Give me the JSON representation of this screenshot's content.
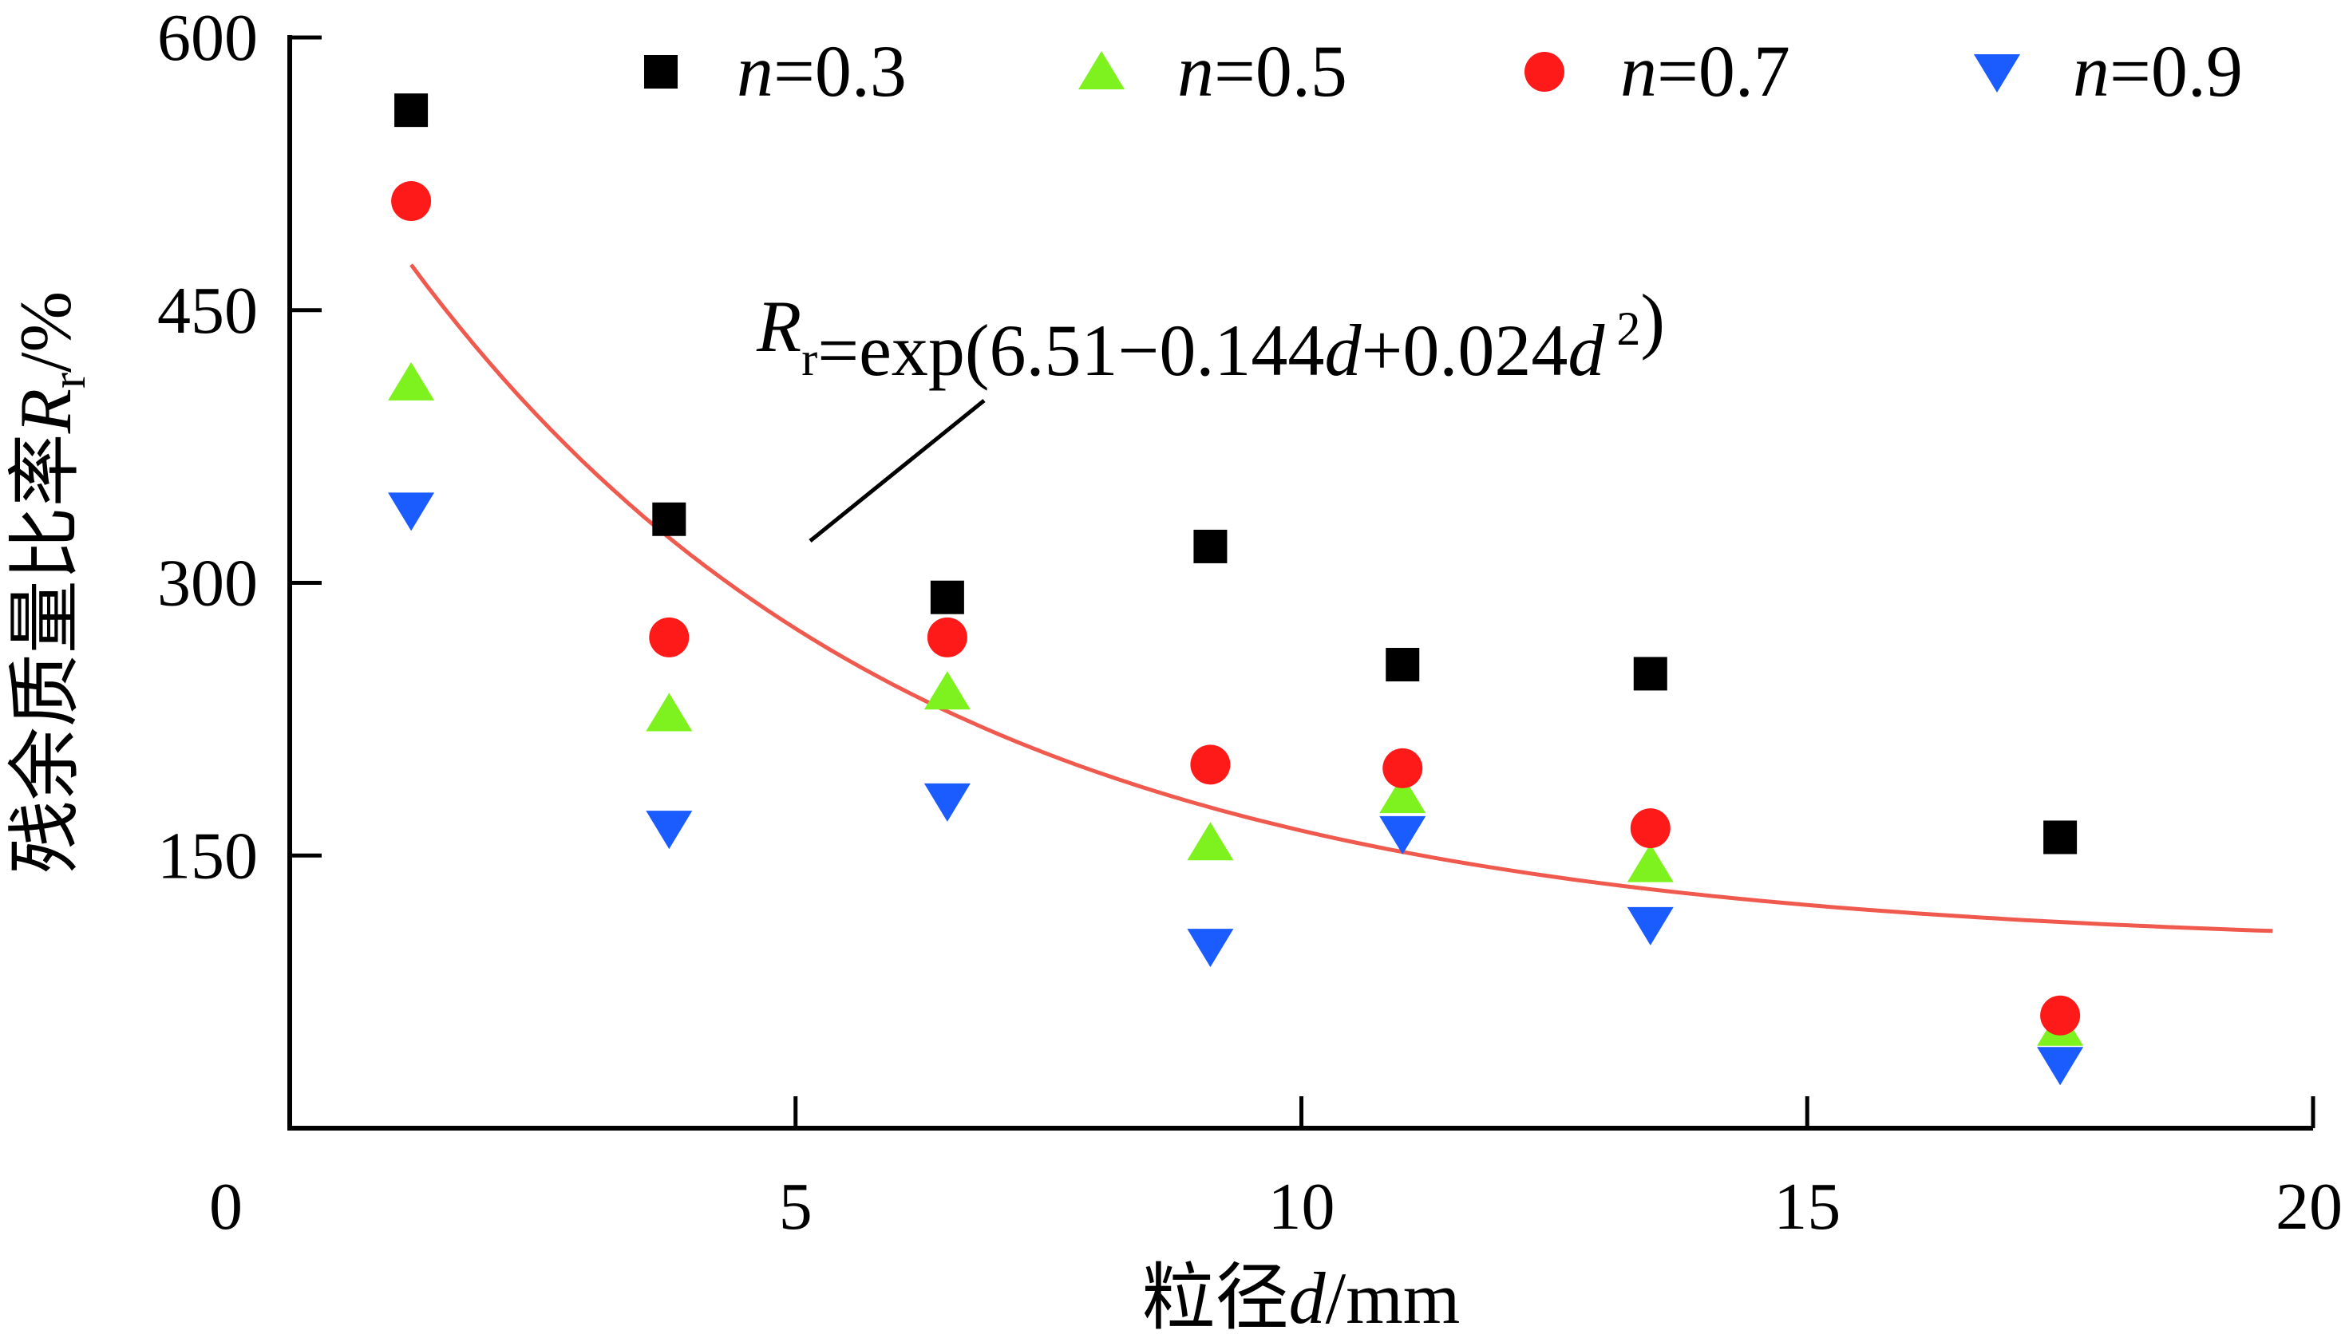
{
  "chart_data": {
    "type": "scatter",
    "xlabel": {
      "prefix": "粒径",
      "var": "d",
      "unit": "/mm"
    },
    "ylabel": {
      "prefix": "残余质量比率",
      "var": "R",
      "sub": "r",
      "unit": "/%"
    },
    "xlim": [
      0,
      20
    ],
    "ylim": [
      0,
      600
    ],
    "xticks": [
      0,
      5,
      10,
      15,
      20
    ],
    "yticks": [
      150,
      300,
      450,
      600
    ],
    "grid": false,
    "legend_position": "top",
    "x": [
      1.2,
      3.75,
      6.5,
      9.1,
      11.0,
      13.45,
      17.5
    ],
    "series": [
      {
        "name_var": "n",
        "name_value": "=0.3",
        "marker": "square",
        "color": "#000000",
        "values": [
          560,
          335,
          292,
          320,
          255,
          250,
          160
        ]
      },
      {
        "name_var": "n",
        "name_value": "=0.5",
        "marker": "triangle-up",
        "color": "#7df21f",
        "values": [
          410,
          228,
          240,
          157,
          183,
          145,
          55
        ]
      },
      {
        "name_var": "n",
        "name_value": "=0.7",
        "marker": "circle",
        "color": "#ff1a1a",
        "values": [
          510,
          270,
          270,
          200,
          198,
          165,
          62
        ]
      },
      {
        "name_var": "n",
        "name_value": "=0.9",
        "marker": "triangle-down",
        "color": "#1a5cff",
        "values": [
          340,
          165,
          180,
          100,
          162,
          112,
          35
        ]
      }
    ],
    "fit": {
      "color": "#f05a4e",
      "x_start": 1.2,
      "x_end": 19.6,
      "label_parts": [
        {
          "t": "R",
          "style": "italic"
        },
        {
          "t": "r",
          "style": "sub"
        },
        {
          "t": "=exp(6.51−0.144",
          "style": "normal"
        },
        {
          "t": "d",
          "style": "italic"
        },
        {
          "t": "+0.024",
          "style": "normal"
        },
        {
          "t": "d",
          "style": "italic"
        },
        {
          "t": " 2",
          "style": "sup"
        },
        {
          "t": ")",
          "style": "normal"
        }
      ]
    }
  }
}
